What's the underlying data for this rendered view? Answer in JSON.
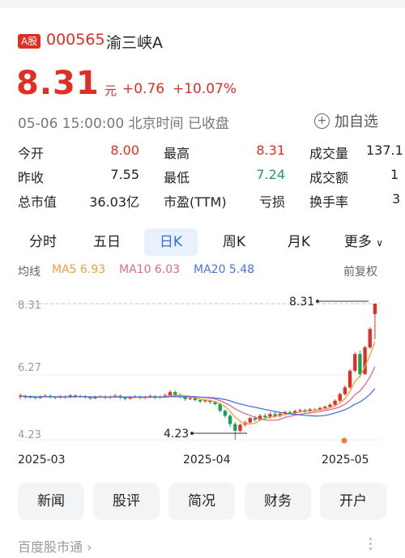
{
  "stock": {
    "market_badge": "A股",
    "code": "000565",
    "name": "渝三峡A",
    "price": "8.31",
    "unit": "元",
    "change": "+0.76",
    "change_pct": "+10.07%",
    "time": "05-06 15:00:00 北京时间 已收盘",
    "watchlist_label": "加自选"
  },
  "stats": [
    {
      "label": "今开",
      "value": "8.00",
      "color": "red"
    },
    {
      "label": "最高",
      "value": "8.31",
      "color": "red"
    },
    {
      "label": "成交量",
      "value": "137.1",
      "color": "black"
    },
    {
      "label": "昨收",
      "value": "7.55",
      "color": "black"
    },
    {
      "label": "最低",
      "value": "7.24",
      "color": "green"
    },
    {
      "label": "成交额",
      "value": "1",
      "color": "black"
    },
    {
      "label": "总市值",
      "value": "36.03亿",
      "color": "black"
    },
    {
      "label": "市盈(TTM)",
      "value": "亏损",
      "color": "black"
    },
    {
      "label": "换手率",
      "value": "3",
      "color": "black"
    }
  ],
  "tabs": [
    "分时",
    "五日",
    "日K",
    "周K",
    "月K",
    "更多"
  ],
  "active_tab": "日K",
  "ma_line": {
    "label": "均线",
    "ma5": "MA5 6.93",
    "ma10": "MA10 6.03",
    "ma20": "MA20 5.48",
    "adjust": "前复权"
  },
  "colors": {
    "up": "#e02e24",
    "down": "#18a058",
    "ma5": "#e8a23a",
    "ma10": "#d96a8f",
    "ma20": "#4a73d9",
    "active_tab": "#2f6fe0"
  },
  "chart_data": {
    "type": "candlestick",
    "y_ticks": [
      "8.31",
      "6.27",
      "4.23"
    ],
    "x_ticks": [
      "2025-03",
      "2025-04",
      "2025-05"
    ],
    "ylim": [
      4.23,
      8.31
    ],
    "annotations": {
      "high": "8.31",
      "low": "4.23"
    },
    "candles": [
      [
        5.52,
        5.55,
        5.45,
        5.62
      ],
      [
        5.55,
        5.5,
        5.46,
        5.58
      ],
      [
        5.5,
        5.52,
        5.47,
        5.56
      ],
      [
        5.52,
        5.48,
        5.44,
        5.55
      ],
      [
        5.48,
        5.53,
        5.46,
        5.57
      ],
      [
        5.53,
        5.55,
        5.5,
        5.6
      ],
      [
        5.55,
        5.51,
        5.47,
        5.58
      ],
      [
        5.51,
        5.49,
        5.45,
        5.54
      ],
      [
        5.49,
        5.53,
        5.47,
        5.57
      ],
      [
        5.53,
        5.5,
        5.46,
        5.56
      ],
      [
        5.5,
        5.56,
        5.48,
        5.6
      ],
      [
        5.56,
        5.52,
        5.48,
        5.59
      ],
      [
        5.52,
        5.54,
        5.49,
        5.58
      ],
      [
        5.54,
        5.5,
        5.46,
        5.57
      ],
      [
        5.5,
        5.47,
        5.43,
        5.53
      ],
      [
        5.47,
        5.51,
        5.45,
        5.55
      ],
      [
        5.51,
        5.53,
        5.48,
        5.57
      ],
      [
        5.53,
        5.49,
        5.45,
        5.56
      ],
      [
        5.49,
        5.52,
        5.46,
        5.56
      ],
      [
        5.52,
        5.55,
        5.49,
        5.6
      ],
      [
        5.55,
        5.5,
        5.45,
        5.58
      ],
      [
        5.5,
        5.46,
        5.41,
        5.53
      ],
      [
        5.46,
        5.5,
        5.44,
        5.54
      ],
      [
        5.5,
        5.53,
        5.47,
        5.57
      ],
      [
        5.53,
        5.48,
        5.44,
        5.56
      ],
      [
        5.48,
        5.51,
        5.45,
        5.55
      ],
      [
        5.51,
        5.54,
        5.48,
        5.59
      ],
      [
        5.54,
        5.49,
        5.45,
        5.57
      ],
      [
        5.49,
        5.52,
        5.46,
        5.56
      ],
      [
        5.52,
        5.56,
        5.49,
        5.62
      ],
      [
        5.56,
        5.66,
        5.52,
        5.72
      ],
      [
        5.66,
        5.58,
        5.52,
        5.7
      ],
      [
        5.58,
        5.51,
        5.47,
        5.62
      ],
      [
        5.51,
        5.45,
        5.4,
        5.55
      ],
      [
        5.45,
        5.48,
        5.42,
        5.52
      ],
      [
        5.48,
        5.42,
        5.38,
        5.51
      ],
      [
        5.42,
        5.38,
        5.33,
        5.46
      ],
      [
        5.38,
        5.41,
        5.35,
        5.45
      ],
      [
        5.41,
        5.36,
        5.3,
        5.44
      ],
      [
        5.36,
        5.3,
        5.26,
        5.4
      ],
      [
        5.3,
        5.1,
        5.05,
        5.34
      ],
      [
        5.1,
        4.95,
        4.88,
        5.14
      ],
      [
        4.95,
        4.7,
        4.62,
        5.0
      ],
      [
        4.7,
        4.5,
        4.23,
        4.76
      ],
      [
        4.5,
        4.68,
        4.45,
        4.72
      ],
      [
        4.68,
        4.75,
        4.62,
        4.8
      ],
      [
        4.75,
        4.88,
        4.7,
        4.92
      ],
      [
        4.88,
        4.83,
        4.78,
        4.95
      ],
      [
        4.83,
        4.95,
        4.8,
        5.0
      ],
      [
        4.95,
        4.9,
        4.85,
        5.02
      ],
      [
        4.9,
        5.0,
        4.86,
        5.05
      ],
      [
        5.0,
        4.94,
        4.89,
        5.06
      ],
      [
        4.94,
        5.01,
        4.9,
        5.06
      ],
      [
        5.01,
        5.06,
        4.97,
        5.1
      ],
      [
        5.06,
        5.03,
        4.99,
        5.1
      ],
      [
        5.03,
        5.09,
        5.0,
        5.13
      ],
      [
        5.09,
        5.12,
        5.05,
        5.16
      ],
      [
        5.12,
        5.08,
        5.04,
        5.16
      ],
      [
        5.08,
        5.14,
        5.05,
        5.18
      ],
      [
        5.14,
        5.13,
        5.09,
        5.18
      ],
      [
        5.13,
        5.18,
        5.1,
        5.22
      ],
      [
        5.18,
        5.22,
        5.14,
        5.26
      ],
      [
        5.22,
        5.28,
        5.18,
        5.32
      ],
      [
        5.28,
        5.4,
        5.24,
        5.44
      ],
      [
        5.4,
        5.6,
        5.36,
        5.64
      ],
      [
        5.6,
        5.8,
        5.55,
        5.86
      ],
      [
        5.8,
        6.3,
        5.75,
        6.35
      ],
      [
        6.3,
        6.8,
        6.25,
        6.86
      ],
      [
        6.8,
        6.2,
        6.1,
        6.9
      ],
      [
        6.2,
        7.0,
        6.18,
        7.05
      ],
      [
        7.0,
        7.55,
        6.96,
        7.6
      ],
      [
        8.0,
        8.31,
        7.24,
        8.31
      ]
    ]
  },
  "bottom_buttons": [
    "新闻",
    "股评",
    "简况",
    "财务",
    "开户"
  ],
  "footer": {
    "label": "百度股市通"
  }
}
